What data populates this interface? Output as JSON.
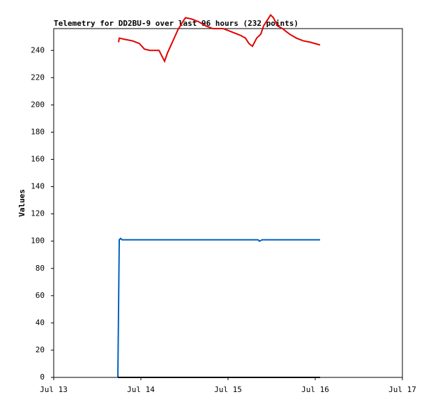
{
  "chart_data": {
    "type": "line",
    "title": "Telemetry for DD2BU-9 over last 96 hours (232 points)",
    "y_label": "Values",
    "xlim": [
      13,
      17
    ],
    "xticks": [
      {
        "value": 13,
        "label": "Jul 13"
      },
      {
        "value": 14,
        "label": "Jul 14"
      },
      {
        "value": 15,
        "label": "Jul 15"
      },
      {
        "value": 16,
        "label": "Jul 16"
      },
      {
        "value": 17,
        "label": "Jul 17"
      }
    ],
    "ylim": [
      0,
      256
    ],
    "yticks": [
      0,
      20,
      40,
      60,
      80,
      100,
      120,
      140,
      160,
      180,
      200,
      220,
      240
    ],
    "grid": false,
    "series": [
      {
        "color": "#e00000",
        "x": [
          13.744,
          13.752,
          13.824,
          13.904,
          13.984,
          14.04,
          14.104,
          14.208,
          14.24,
          14.272,
          14.304,
          14.368,
          14.424,
          14.48,
          14.512,
          14.584,
          14.664,
          14.744,
          14.824,
          14.944,
          15.064,
          15.144,
          15.2,
          15.24,
          15.28,
          15.328,
          15.376,
          15.408,
          15.448,
          15.488,
          15.52,
          15.568,
          15.624,
          15.704,
          15.784,
          15.864,
          15.944,
          16.0,
          16.056
        ],
        "values": [
          246,
          249,
          248,
          247,
          245,
          241,
          240,
          240,
          236,
          232,
          238,
          247,
          255,
          261,
          264,
          263,
          261,
          258,
          256,
          256,
          253,
          251,
          249,
          245,
          243,
          249,
          252,
          258,
          262,
          266,
          264,
          258,
          256,
          252,
          249,
          247,
          246,
          245,
          244
        ]
      },
      {
        "color": "#0060c0",
        "x": [
          13.736,
          13.744,
          13.752,
          13.768,
          13.784,
          13.984,
          14.384,
          15.344,
          15.36,
          15.392,
          16.056
        ],
        "values": [
          0,
          51,
          101,
          102,
          101,
          101,
          101,
          101,
          100,
          101,
          101
        ]
      },
      {
        "color": "#000000",
        "x": [
          13.736,
          16.056
        ],
        "values": [
          0,
          0
        ]
      }
    ]
  }
}
